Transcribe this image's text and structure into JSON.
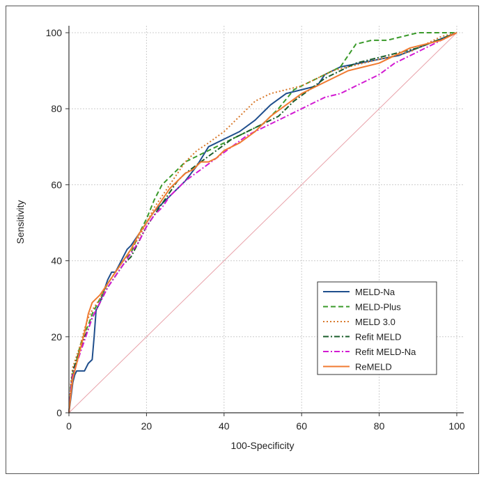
{
  "chart_data": {
    "type": "line",
    "title": "",
    "xlabel": "100-Specificity",
    "ylabel": "Sensitivity",
    "xlim": [
      0,
      100
    ],
    "ylim": [
      0,
      100
    ],
    "xticks": [
      0,
      20,
      40,
      60,
      80,
      100
    ],
    "yticks": [
      0,
      20,
      40,
      60,
      80,
      100
    ],
    "grid": true,
    "legend_position": "bottom-right",
    "reference_line": {
      "x": [
        0,
        100
      ],
      "y": [
        0,
        100
      ],
      "color": "#e8a0a8"
    },
    "series": [
      {
        "name": "MELD-Na",
        "color": "#1f4e8c",
        "dash": "solid",
        "x": [
          0,
          0.5,
          1,
          1.5,
          2,
          3,
          4,
          5,
          6,
          6.5,
          7,
          8,
          9,
          10,
          11,
          12,
          13,
          14,
          15,
          16,
          18,
          20,
          22,
          24,
          26,
          28,
          30,
          33,
          36,
          40,
          44,
          48,
          52,
          56,
          60,
          64,
          66,
          70,
          75,
          80,
          85,
          90,
          95,
          100
        ],
        "y": [
          0,
          4,
          8,
          10,
          11,
          11,
          11,
          13,
          14,
          20,
          27,
          29,
          32,
          35,
          37,
          37,
          39,
          41,
          43,
          44,
          47,
          50,
          53,
          55,
          57,
          59,
          61,
          65,
          70,
          72,
          74,
          77,
          81,
          84,
          85,
          86,
          89,
          91,
          92,
          93,
          94,
          96,
          98,
          100
        ]
      },
      {
        "name": "MELD-Plus",
        "color": "#3a9a2a",
        "dash": "dashed",
        "x": [
          0,
          0.5,
          1,
          2,
          3,
          4,
          5,
          6,
          8,
          10,
          12,
          14,
          16,
          18,
          20,
          22,
          24,
          26,
          28,
          30,
          34,
          38,
          42,
          46,
          50,
          54,
          58,
          62,
          66,
          70,
          72,
          74,
          78,
          82,
          86,
          90,
          95,
          100
        ],
        "y": [
          0,
          6,
          10,
          14,
          18,
          21,
          23,
          26,
          30,
          34,
          37,
          40,
          42,
          47,
          51,
          56,
          60,
          62,
          64,
          66,
          68,
          70,
          72,
          74,
          76,
          80,
          85,
          87,
          89,
          91,
          94,
          97,
          98,
          98,
          99,
          100,
          100,
          100
        ]
      },
      {
        "name": "MELD 3.0",
        "color": "#d8782a",
        "dash": "dotted",
        "x": [
          0,
          0.5,
          1,
          2,
          3,
          4,
          5,
          6,
          8,
          10,
          12,
          14,
          16,
          18,
          20,
          22,
          24,
          26,
          28,
          30,
          33,
          36,
          40,
          44,
          48,
          52,
          56,
          60,
          64,
          68,
          72,
          76,
          80,
          84,
          88,
          92,
          96,
          100
        ],
        "y": [
          0,
          8,
          12,
          15,
          18,
          22,
          25,
          27,
          30,
          34,
          37,
          40,
          43,
          46,
          50,
          54,
          57,
          60,
          63,
          66,
          69,
          71,
          74,
          78,
          82,
          84,
          85,
          86,
          88,
          90,
          91,
          92,
          93,
          94,
          95,
          97,
          99,
          100
        ]
      },
      {
        "name": "Refit MELD",
        "color": "#1a5c2a",
        "dash": "dashdot",
        "x": [
          0,
          0.5,
          1,
          2,
          3,
          4,
          5,
          6,
          8,
          10,
          12,
          14,
          16,
          18,
          20,
          22,
          24,
          26,
          28,
          30,
          34,
          38,
          42,
          46,
          50,
          54,
          58,
          62,
          66,
          70,
          74,
          78,
          82,
          86,
          90,
          95,
          100
        ],
        "y": [
          0,
          7,
          11,
          14,
          17,
          20,
          22,
          25,
          29,
          33,
          36,
          39,
          41,
          45,
          49,
          52,
          55,
          58,
          61,
          63,
          66,
          69,
          72,
          74,
          76,
          78,
          82,
          85,
          88,
          90,
          92,
          93,
          94,
          95,
          96,
          98,
          100
        ]
      },
      {
        "name": "Refit MELD-Na",
        "color": "#d21ad2",
        "dash": "dashdot",
        "x": [
          0,
          0.5,
          1,
          2,
          3,
          4,
          5,
          6,
          8,
          10,
          12,
          14,
          16,
          18,
          20,
          22,
          24,
          26,
          28,
          30,
          34,
          38,
          42,
          46,
          50,
          54,
          58,
          62,
          66,
          70,
          74,
          78,
          80,
          84,
          88,
          92,
          96,
          100
        ],
        "y": [
          0,
          6,
          10,
          13,
          16,
          19,
          22,
          25,
          29,
          33,
          36,
          39,
          42,
          45,
          49,
          52,
          54,
          57,
          59,
          61,
          64,
          67,
          70,
          73,
          75,
          77,
          79,
          81,
          83,
          84,
          86,
          88,
          89,
          92,
          94,
          96,
          98,
          100
        ]
      },
      {
        "name": "ReMELD",
        "color": "#f07a30",
        "dash": "solid",
        "x": [
          0,
          0.5,
          1,
          2,
          3,
          4,
          5,
          6,
          8,
          10,
          12,
          14,
          16,
          18,
          20,
          22,
          24,
          26,
          28,
          30,
          32,
          34,
          36,
          38,
          40,
          42,
          44,
          48,
          52,
          56,
          60,
          64,
          68,
          72,
          76,
          80,
          84,
          88,
          92,
          96,
          100
        ],
        "y": [
          0,
          5,
          9,
          13,
          17,
          21,
          26,
          29,
          31,
          34,
          37,
          40,
          43,
          47,
          50,
          53,
          56,
          59,
          61,
          63,
          64,
          66,
          66,
          67,
          69,
          70,
          71,
          74,
          78,
          81,
          84,
          86,
          88,
          90,
          91,
          92,
          94,
          96,
          97,
          98,
          100
        ]
      }
    ]
  }
}
